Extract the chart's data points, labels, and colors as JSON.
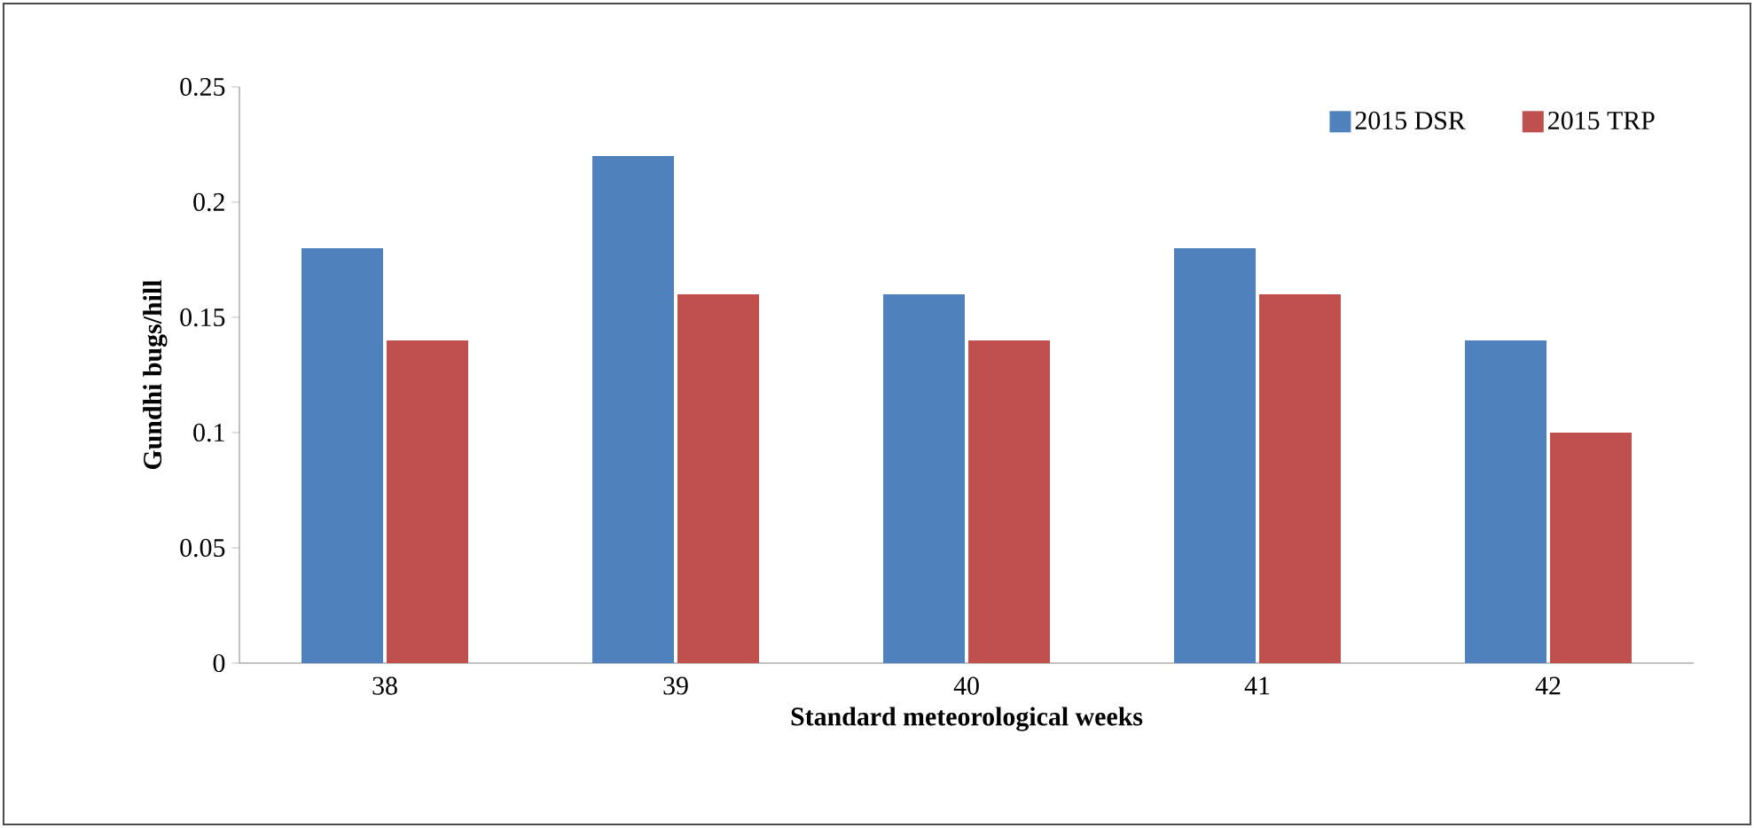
{
  "chart_data": {
    "type": "bar",
    "xlabel": "Standard meteorological weeks",
    "ylabel": "Gundhi  bugs/hill",
    "categories": [
      "38",
      "39",
      "40",
      "41",
      "42"
    ],
    "series": [
      {
        "name": "2015 DSR",
        "color": "#4f81bd",
        "values": [
          0.18,
          0.22,
          0.16,
          0.18,
          0.14
        ]
      },
      {
        "name": "2015 TRP",
        "color": "#c0504d",
        "values": [
          0.14,
          0.16,
          0.14,
          0.16,
          0.1
        ]
      }
    ],
    "ylim": [
      0,
      0.25
    ],
    "yticks": [
      0,
      0.05,
      0.1,
      0.15,
      0.2,
      0.25
    ],
    "legend": "top right"
  }
}
